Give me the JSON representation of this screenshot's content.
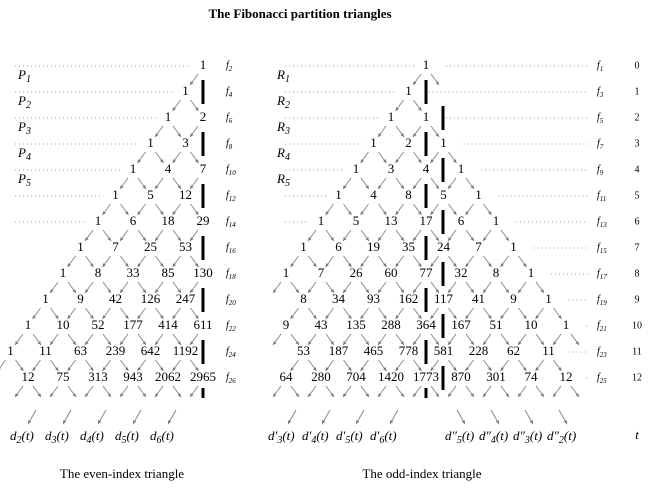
{
  "title": "The Fibonacci partition triangles",
  "even_triangle": {
    "rows": [
      [
        1
      ],
      [
        1
      ],
      [
        1,
        2
      ],
      [
        1,
        3
      ],
      [
        1,
        4,
        7
      ],
      [
        1,
        5,
        12
      ],
      [
        1,
        6,
        18,
        29
      ],
      [
        1,
        7,
        25,
        53
      ],
      [
        1,
        8,
        33,
        85,
        130
      ],
      [
        1,
        9,
        42,
        126,
        247
      ],
      [
        1,
        10,
        52,
        177,
        414,
        611
      ],
      [
        1,
        11,
        63,
        239,
        642,
        1192
      ],
      [
        12,
        75,
        313,
        943,
        2062,
        2965
      ]
    ],
    "f_symbol": "f",
    "f_subscripts": [
      "2",
      "4",
      "6",
      "8",
      "10",
      "12",
      "14",
      "16",
      "18",
      "20",
      "22",
      "24",
      "26"
    ],
    "partition_labels": [
      {
        "symbol": "P",
        "subscript": "1"
      },
      {
        "symbol": "P",
        "subscript": "2"
      },
      {
        "symbol": "P",
        "subscript": "3"
      },
      {
        "symbol": "P",
        "subscript": "4"
      },
      {
        "symbol": "P",
        "subscript": "5"
      }
    ],
    "bottom_labels": [
      {
        "symbol": "d",
        "subscript": "2",
        "argument": "(t)"
      },
      {
        "symbol": "d",
        "subscript": "3",
        "argument": "(t)"
      },
      {
        "symbol": "d",
        "subscript": "4",
        "argument": "(t)"
      },
      {
        "symbol": "d",
        "subscript": "5",
        "argument": "(t)"
      },
      {
        "symbol": "d",
        "subscript": "6",
        "argument": "(t)"
      }
    ],
    "caption": "The even-index triangle"
  },
  "odd_triangle": {
    "rows": [
      [
        1
      ],
      [
        1
      ],
      [
        1,
        1
      ],
      [
        1,
        2,
        1
      ],
      [
        1,
        3,
        4,
        1
      ],
      [
        1,
        4,
        8,
        5,
        1
      ],
      [
        1,
        5,
        13,
        17,
        6,
        1
      ],
      [
        1,
        6,
        19,
        35,
        24,
        7,
        1
      ],
      [
        1,
        7,
        26,
        60,
        77,
        32,
        8,
        1
      ],
      [
        8,
        34,
        93,
        162,
        117,
        41,
        9,
        1
      ],
      [
        9,
        43,
        135,
        288,
        364,
        167,
        51,
        10,
        1
      ],
      [
        53,
        187,
        465,
        778,
        581,
        228,
        62,
        11
      ],
      [
        64,
        280,
        704,
        1420,
        1773,
        870,
        301,
        74,
        12
      ]
    ],
    "f_symbol": "f",
    "f_subscripts": [
      "1",
      "3",
      "5",
      "7",
      "9",
      "11",
      "13",
      "15",
      "17",
      "19",
      "21",
      "23",
      "25"
    ],
    "partition_labels": [
      {
        "symbol": "R",
        "subscript": "1"
      },
      {
        "symbol": "R",
        "subscript": "2"
      },
      {
        "symbol": "R",
        "subscript": "3"
      },
      {
        "symbol": "R",
        "subscript": "4"
      },
      {
        "symbol": "R",
        "subscript": "5"
      }
    ],
    "bottom_labels_left": [
      {
        "symbol": "d′",
        "subscript": "3",
        "argument": "(t)"
      },
      {
        "symbol": "d′",
        "subscript": "4",
        "argument": "(t)"
      },
      {
        "symbol": "d′",
        "subscript": "5",
        "argument": "(t)"
      },
      {
        "symbol": "d′",
        "subscript": "6",
        "argument": "(t)"
      }
    ],
    "bottom_labels_right": [
      {
        "symbol": "d″",
        "subscript": "5",
        "argument": "(t)"
      },
      {
        "symbol": "d″",
        "subscript": "4",
        "argument": "(t)"
      },
      {
        "symbol": "d″",
        "subscript": "3",
        "argument": "(t)"
      },
      {
        "symbol": "d″",
        "subscript": "2",
        "argument": "(t)"
      }
    ],
    "caption": "The odd-index triangle"
  },
  "row_index": {
    "values": [
      0,
      1,
      2,
      3,
      4,
      5,
      6,
      7,
      8,
      9,
      10,
      11,
      12
    ],
    "t_label": "t"
  }
}
